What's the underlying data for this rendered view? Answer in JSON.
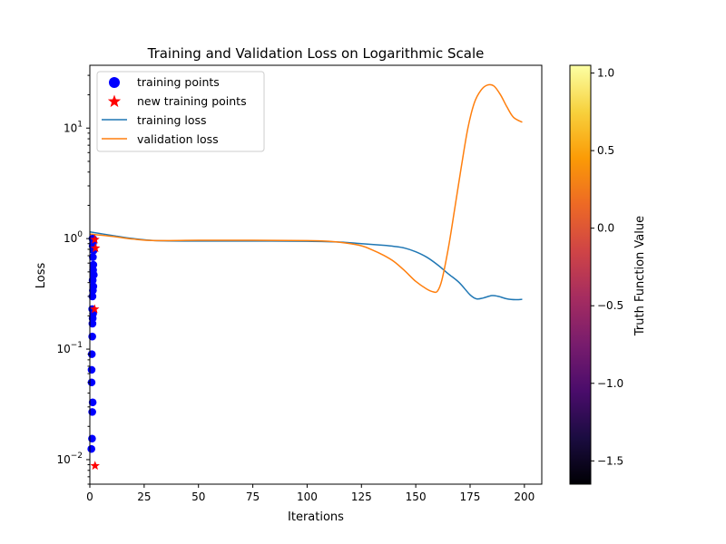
{
  "chart_data": {
    "type": "line",
    "title": "Training and Validation Loss on Logarithmic Scale",
    "xlabel": "Iterations",
    "ylabel": "Loss",
    "yscale": "log",
    "xlim": [
      0,
      208
    ],
    "ylim": [
      0.006,
      37
    ],
    "xticks": [
      "0",
      "25",
      "50",
      "75",
      "100",
      "125",
      "150",
      "175",
      "200"
    ],
    "yticks": [
      {
        "value": 0.01,
        "label": "10",
        "exp": "−2"
      },
      {
        "value": 0.1,
        "label": "10",
        "exp": "−1"
      },
      {
        "value": 1,
        "label": "10",
        "exp": "0"
      },
      {
        "value": 10,
        "label": "10",
        "exp": "1"
      }
    ],
    "grid": false,
    "legend_position": "top-left",
    "series": [
      {
        "name": "training loss",
        "color": "#1f77b4",
        "x": [
          0,
          10,
          20,
          30,
          50,
          75,
          100,
          115,
          125,
          135,
          140,
          145,
          150,
          155,
          160,
          165,
          170,
          175,
          178,
          181,
          185,
          188,
          192,
          196,
          199
        ],
        "y": [
          1.15,
          1.07,
          1.0,
          0.96,
          0.95,
          0.95,
          0.945,
          0.93,
          0.9,
          0.87,
          0.85,
          0.82,
          0.76,
          0.68,
          0.58,
          0.48,
          0.4,
          0.31,
          0.285,
          0.29,
          0.305,
          0.3,
          0.285,
          0.28,
          0.282
        ]
      },
      {
        "name": "validation loss",
        "color": "#ff7f0e",
        "x": [
          0,
          10,
          20,
          30,
          50,
          75,
          100,
          110,
          118,
          125,
          130,
          135,
          140,
          145,
          150,
          155,
          158,
          160,
          162,
          165,
          168,
          171,
          174,
          177,
          180,
          183,
          186,
          189,
          192,
          195,
          199
        ],
        "y": [
          1.1,
          1.05,
          0.99,
          0.96,
          0.965,
          0.965,
          0.96,
          0.945,
          0.91,
          0.86,
          0.79,
          0.71,
          0.62,
          0.51,
          0.41,
          0.35,
          0.33,
          0.335,
          0.42,
          0.82,
          1.9,
          4.5,
          10,
          17,
          22,
          24.5,
          24,
          20,
          15.5,
          12.5,
          11.3
        ]
      }
    ],
    "training_points": {
      "name": "training points",
      "color": "#0000ff",
      "points": [
        [
          1.2,
          1.0
        ],
        [
          1.6,
          0.99
        ],
        [
          1.5,
          0.92
        ],
        [
          1.3,
          0.86
        ],
        [
          1.7,
          0.78
        ],
        [
          1.4,
          0.68
        ],
        [
          1.6,
          0.58
        ],
        [
          1.5,
          0.52
        ],
        [
          1.8,
          0.47
        ],
        [
          1.3,
          0.42
        ],
        [
          1.6,
          0.37
        ],
        [
          1.4,
          0.34
        ],
        [
          1.2,
          0.3
        ],
        [
          1.1,
          0.23
        ],
        [
          1.5,
          0.21
        ],
        [
          1.3,
          0.19
        ],
        [
          1.2,
          0.17
        ],
        [
          1.1,
          0.13
        ],
        [
          0.9,
          0.09
        ],
        [
          0.8,
          0.065
        ],
        [
          0.8,
          0.05
        ],
        [
          1.3,
          0.033
        ],
        [
          1.1,
          0.027
        ],
        [
          1.0,
          0.0155
        ],
        [
          0.7,
          0.0125
        ]
      ]
    },
    "new_training_points": {
      "name": "new training points",
      "color": "#ff0000",
      "points": [
        [
          2.3,
          0.98
        ],
        [
          2.6,
          0.82
        ],
        [
          2.2,
          0.23
        ],
        [
          2.4,
          0.0088
        ]
      ]
    },
    "colorbar": {
      "label": "Truth Function Value",
      "min": -1.65,
      "max": 1.05,
      "ticks": [
        {
          "value": 1.0,
          "label": "1.0"
        },
        {
          "value": 0.5,
          "label": "0.5"
        },
        {
          "value": 0.0,
          "label": "0.0"
        },
        {
          "value": -0.5,
          "label": "−0.5"
        },
        {
          "value": -1.0,
          "label": "−1.0"
        },
        {
          "value": -1.5,
          "label": "−1.5"
        }
      ],
      "colormap": "inferno",
      "colors": [
        "#000004",
        "#1b0c41",
        "#4a0c6b",
        "#781c6d",
        "#a52c60",
        "#cf4446",
        "#ed6925",
        "#fb9b06",
        "#f7d13d",
        "#fcffa4"
      ]
    }
  }
}
